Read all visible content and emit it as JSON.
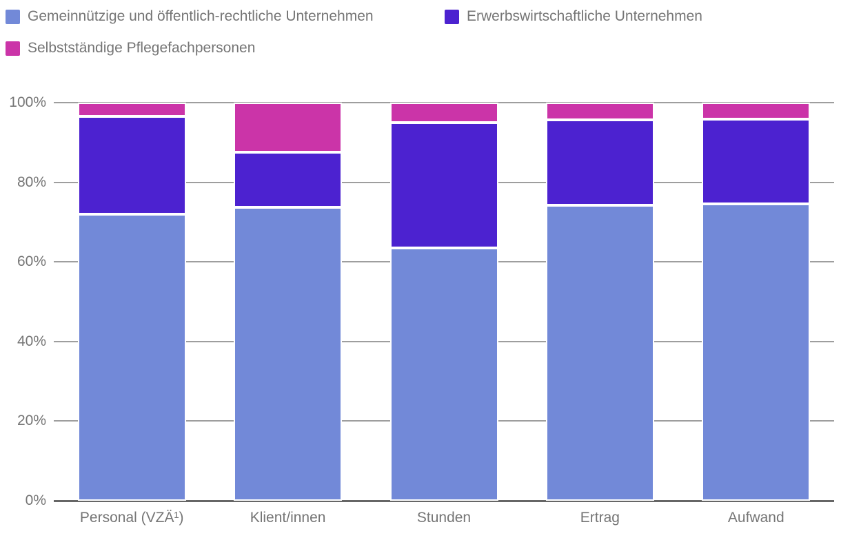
{
  "legend": {
    "items": [
      {
        "label": "Gemeinnützige und öffentlich-rechtliche Unternehmen",
        "color": "#7289D8"
      },
      {
        "label": "Erwerbswirtschaftliche Unternehmen",
        "color": "#4C22D0"
      },
      {
        "label": "Selbstständige Pflegefachpersonen",
        "color": "#CB34A8"
      }
    ]
  },
  "chart_data": {
    "type": "bar",
    "stacked": true,
    "orientation": "vertical",
    "unit": "%",
    "title": "",
    "xlabel": "",
    "ylabel": "",
    "categories": [
      "Personal (VZÄ¹)",
      "Klient/innen",
      "Stunden",
      "Ertrag",
      "Aufwand"
    ],
    "series": [
      {
        "name": "Gemeinnützige und öffentlich-rechtliche Unternehmen",
        "color": "#7289D8",
        "values": [
          72.0,
          73.7,
          63.5,
          74.2,
          74.5
        ]
      },
      {
        "name": "Erwerbswirtschaftliche Unternehmen",
        "color": "#4C22D0",
        "values": [
          24.5,
          13.8,
          31.5,
          21.5,
          21.3
        ]
      },
      {
        "name": "Selbstständige Pflegefachpersonen",
        "color": "#CB34A8",
        "values": [
          3.5,
          12.5,
          5.0,
          4.3,
          4.2
        ]
      }
    ],
    "y_axis": {
      "ticks": [
        {
          "value": 0,
          "label": "0%"
        },
        {
          "value": 20,
          "label": "20%"
        },
        {
          "value": 40,
          "label": "40%"
        },
        {
          "value": 60,
          "label": "60%"
        },
        {
          "value": 80,
          "label": "80%"
        },
        {
          "value": 100,
          "label": "100%"
        }
      ],
      "range": [
        0,
        100
      ]
    },
    "grid": true,
    "gridline_color": "#9E9E9E",
    "baseline_color": "#666666",
    "text_color": "#757575",
    "legend_position": "top"
  }
}
